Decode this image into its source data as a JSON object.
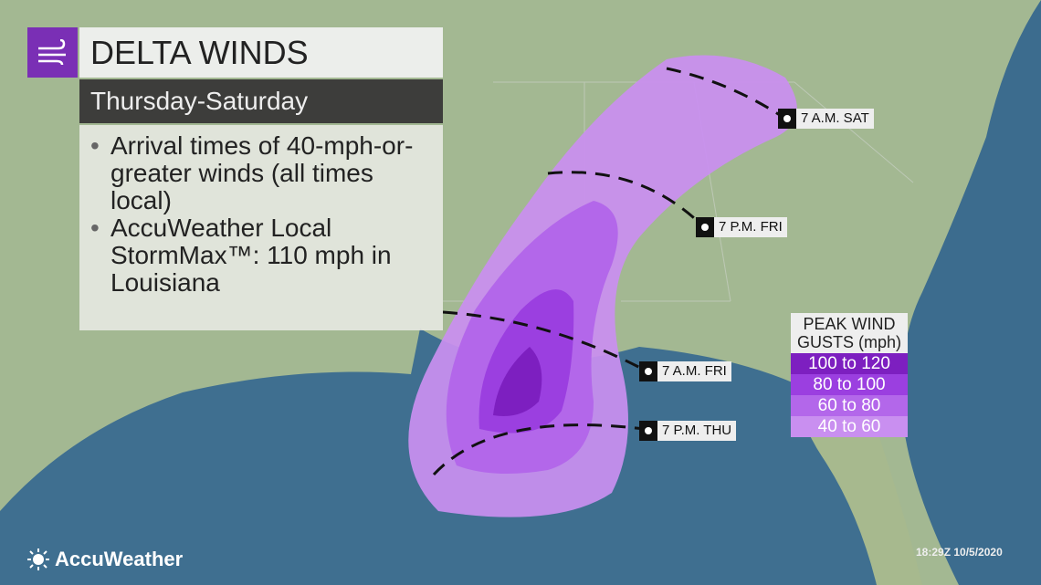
{
  "header": {
    "title": "DELTA WINDS",
    "subtitle": "Thursday-Saturday",
    "icon": "wind-icon"
  },
  "bullets": [
    "Arrival times of 40-mph-or-greater winds (all times local)",
    "AccuWeather Local StormMax™: 110 mph in Louisiana"
  ],
  "time_labels": [
    "7 A.M. SAT",
    "7 P.M. FRI",
    "7 A.M. FRI",
    "7 P.M. THU"
  ],
  "legend": {
    "title": "PEAK WIND GUSTS (mph)",
    "items": [
      {
        "label": "100 to 120",
        "color": "#7d1fc0"
      },
      {
        "label": "80 to 100",
        "color": "#9b3fe0"
      },
      {
        "label": "60 to 80",
        "color": "#b367ea"
      },
      {
        "label": "40 to 60",
        "color": "#c98ff0"
      }
    ]
  },
  "brand": "AccuWeather",
  "timestamp": "18:29Z 10/5/2020"
}
